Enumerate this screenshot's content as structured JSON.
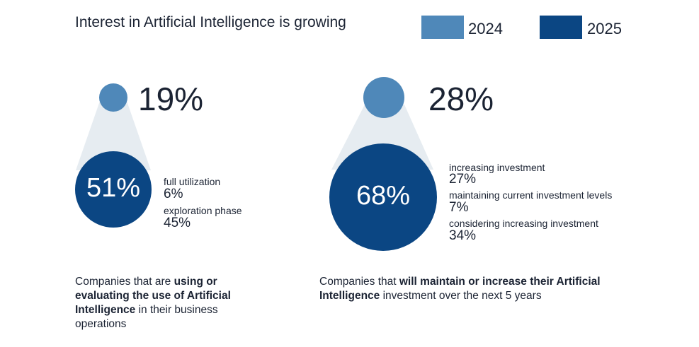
{
  "chart_data": {
    "type": "bubble-comparison",
    "title": "Interest in Artificial Intelligence is growing",
    "legend": [
      {
        "label": "2024",
        "color": "#4f88b9"
      },
      {
        "label": "2025",
        "color": "#0b4683"
      }
    ],
    "panels": [
      {
        "value_2024": "19%",
        "value_2025": "51%",
        "breakdown": [
          {
            "label": "full utilization",
            "value": "6%"
          },
          {
            "label": "exploration phase",
            "value": "45%"
          }
        ],
        "caption": {
          "pre": "Companies that are ",
          "bold": "using or evaluating the use of Artificial Intelligence",
          "post": " in their business operations"
        }
      },
      {
        "value_2024": "28%",
        "value_2025": "68%",
        "breakdown": [
          {
            "label": "increasing investment",
            "value": "27%"
          },
          {
            "label": "maintaining current investment levels",
            "value": "7%"
          },
          {
            "label": "considering increasing investment",
            "value": "34%"
          }
        ],
        "caption": {
          "pre": "Companies that ",
          "bold": "will maintain or increase their Artificial Intelligence",
          "post": " investment over the next 5 years"
        }
      }
    ]
  },
  "colors": {
    "cone": "#e6ecf1",
    "c2024": "#4f88b9",
    "c2025": "#0b4683"
  }
}
